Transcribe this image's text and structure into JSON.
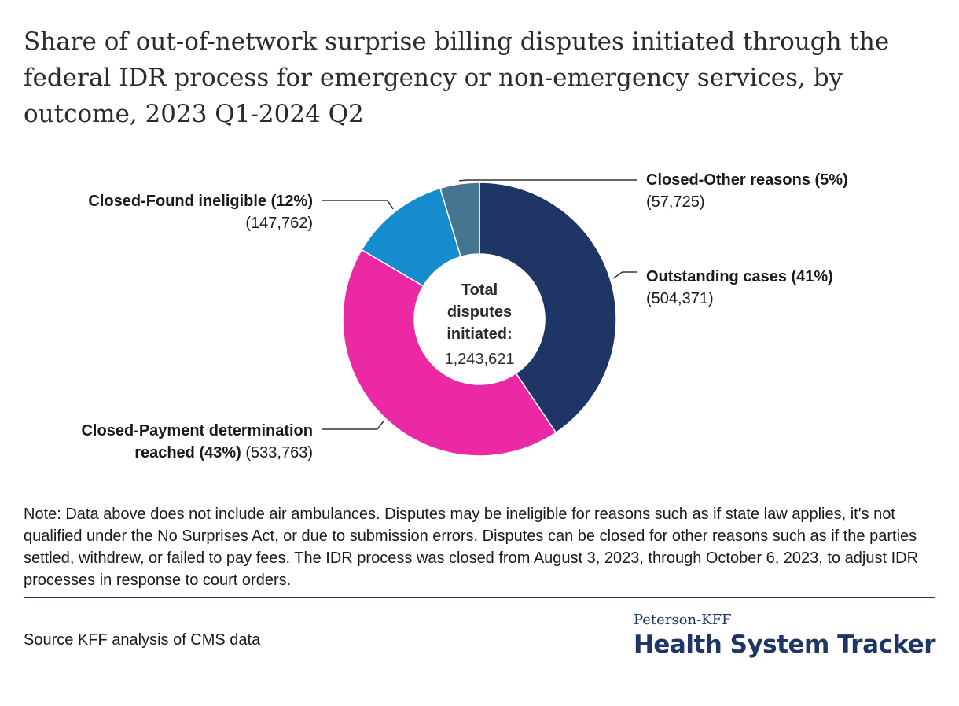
{
  "header": {
    "title": "Share of out-of-network surprise billing disputes initiated through the federal IDR process for emergency or non-emergency services, by outcome, 2023 Q1-2024 Q2"
  },
  "chart_data": {
    "type": "pie",
    "subtype": "donut",
    "title": "Share of out-of-network surprise billing disputes initiated through the federal IDR process for emergency or non-emergency services, by outcome, 2023 Q1-2024 Q2",
    "center_label": {
      "lines": [
        "Total",
        "disputes",
        "initiated:"
      ],
      "value": "1,243,621"
    },
    "slices": [
      {
        "label_lines": [
          "Outstanding cases (41%)"
        ],
        "count": "(504,371)",
        "value": 504371,
        "percent": 41,
        "color": "#1f3566"
      },
      {
        "label_lines": [
          "Closed-Payment determination",
          "reached (43%)"
        ],
        "count": "(533,763)",
        "value": 533763,
        "percent": 43,
        "color": "#ec29a5"
      },
      {
        "label_lines": [
          "Closed-Found ineligible (12%)"
        ],
        "count": "(147,762)",
        "value": 147762,
        "percent": 12,
        "color": "#158ccd"
      },
      {
        "label_lines": [
          "Closed-Other reasons (5%)"
        ],
        "count": "(57,725)",
        "value": 57725,
        "percent": 5,
        "color": "#46758f"
      }
    ]
  },
  "footer": {
    "note": "Note: Data above does not include air ambulances. Disputes may be ineligible for reasons such as if state law applies, it's not qualified under the No Surprises Act, or due to submission errors. Disputes can be closed for other reasons such as if the parties settled, withdrew, or failed to pay fees. The IDR process was closed from August 3, 2023, through October 6, 2023, to adjust IDR processes in response to court orders.",
    "source": "Source KFF analysis of CMS data",
    "brand_small": "Peterson-KFF",
    "brand_big": "Health System Tracker"
  }
}
